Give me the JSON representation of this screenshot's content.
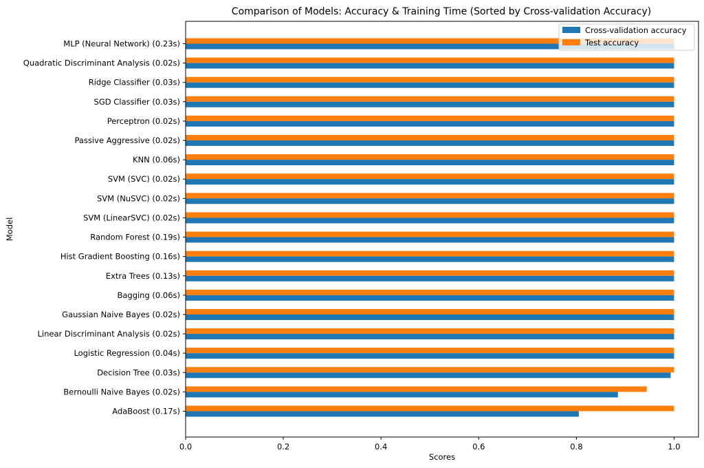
{
  "chart_data": {
    "type": "bar",
    "orientation": "horizontal",
    "title": "Comparison of Models: Accuracy & Training Time (Sorted by Cross-validation Accuracy)",
    "xlabel": "Scores",
    "ylabel": "Model",
    "xlim": [
      0,
      1.05
    ],
    "xticks": [
      "0.0",
      "0.2",
      "0.4",
      "0.6",
      "0.8",
      "1.0"
    ],
    "grid": false,
    "legend_position": "top-right",
    "categories": [
      "MLP (Neural Network) (0.23s)",
      "Quadratic Discriminant Analysis (0.02s)",
      "Ridge Classifier (0.03s)",
      "SGD Classifier (0.03s)",
      "Perceptron (0.02s)",
      "Passive Aggressive (0.02s)",
      "KNN (0.06s)",
      "SVM (SVC) (0.02s)",
      "SVM (NuSVC) (0.02s)",
      "SVM (LinearSVC) (0.02s)",
      "Random Forest (0.19s)",
      "Hist Gradient Boosting (0.16s)",
      "Extra Trees (0.13s)",
      "Bagging (0.06s)",
      "Gaussian Naive Bayes (0.02s)",
      "Linear Discriminant Analysis (0.02s)",
      "Logistic Regression (0.04s)",
      "Decision Tree (0.03s)",
      "Bernoulli Naive Bayes (0.02s)",
      "AdaBoost (0.17s)"
    ],
    "series": [
      {
        "name": "Cross-validation accuracy",
        "color": "#1f77b4",
        "values": [
          1.0,
          1.0,
          1.0,
          1.0,
          1.0,
          1.0,
          1.0,
          1.0,
          1.0,
          1.0,
          1.0,
          1.0,
          1.0,
          1.0,
          1.0,
          1.0,
          1.0,
          0.993,
          0.885,
          0.805
        ]
      },
      {
        "name": "Test accuracy",
        "color": "#ff7f0e",
        "values": [
          1.0,
          1.0,
          1.0,
          1.0,
          1.0,
          1.0,
          1.0,
          1.0,
          1.0,
          1.0,
          1.0,
          1.0,
          1.0,
          1.0,
          1.0,
          1.0,
          1.0,
          1.0,
          0.944,
          1.0
        ]
      }
    ]
  }
}
